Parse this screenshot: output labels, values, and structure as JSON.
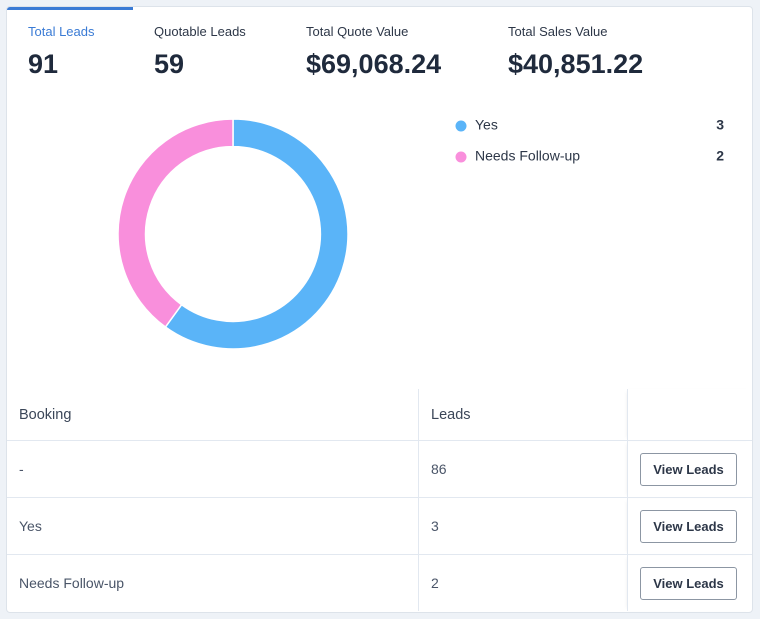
{
  "stats": [
    {
      "label": "Total Leads",
      "value": "91"
    },
    {
      "label": "Quotable Leads",
      "value": "59"
    },
    {
      "label": "Total Quote Value",
      "value": "$69,068.24"
    },
    {
      "label": "Total Sales Value",
      "value": "$40,851.22"
    }
  ],
  "chart_data": {
    "type": "pie",
    "categories": [
      "Yes",
      "Needs Follow-up"
    ],
    "values": [
      3,
      2
    ],
    "colors": [
      "#5ab4f8",
      "#f98fdc"
    ],
    "hole": 0.76
  },
  "table": {
    "header": [
      "Booking",
      "Leads"
    ],
    "rows": [
      [
        "-",
        "86",
        "View Leads"
      ],
      [
        "Yes",
        "3",
        "View Leads"
      ],
      [
        "Needs Follow-up",
        "2",
        "View Leads"
      ]
    ]
  }
}
